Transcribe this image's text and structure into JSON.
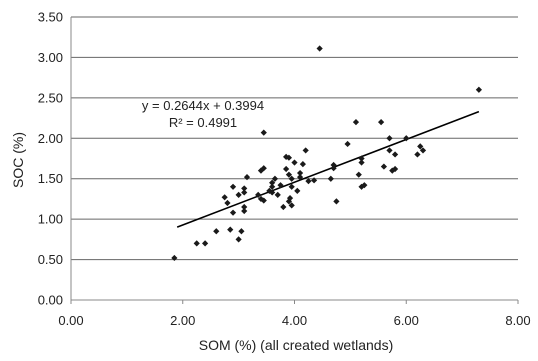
{
  "chart_data": {
    "type": "scatter",
    "title": "",
    "xlabel": "SOM (%) (all created wetlands)",
    "ylabel": "SOC (%)",
    "xlim": [
      0,
      8
    ],
    "ylim": [
      0,
      3.5
    ],
    "x_ticks": [
      "0.00",
      "2.00",
      "4.00",
      "6.00",
      "8.00"
    ],
    "y_ticks": [
      "0.00",
      "0.50",
      "1.00",
      "1.50",
      "2.00",
      "2.50",
      "3.00",
      "3.50"
    ],
    "grid": "horizontal",
    "legend": "none",
    "colors": {
      "points": "#1a1a1a",
      "trendline": "#000000",
      "grid": "#666666",
      "axis": "#888888"
    },
    "trendline": {
      "slope": 0.2644,
      "intercept": 0.3994,
      "x_range": [
        1.9,
        7.3
      ],
      "equation_label": "y = 0.2644x + 0.3994",
      "r2_label": "R² = 0.4991"
    },
    "points": [
      [
        1.85,
        0.52
      ],
      [
        2.25,
        0.7
      ],
      [
        2.4,
        0.7
      ],
      [
        2.6,
        0.85
      ],
      [
        2.75,
        1.27
      ],
      [
        2.8,
        1.2
      ],
      [
        2.85,
        0.87
      ],
      [
        2.9,
        1.08
      ],
      [
        2.9,
        1.4
      ],
      [
        3.0,
        0.75
      ],
      [
        3.05,
        0.85
      ],
      [
        3.0,
        1.3
      ],
      [
        3.1,
        1.15
      ],
      [
        3.1,
        1.1
      ],
      [
        3.1,
        1.38
      ],
      [
        3.1,
        1.33
      ],
      [
        3.15,
        1.52
      ],
      [
        3.35,
        1.3
      ],
      [
        3.4,
        1.6
      ],
      [
        3.4,
        1.25
      ],
      [
        3.45,
        1.63
      ],
      [
        3.45,
        1.23
      ],
      [
        3.45,
        2.07
      ],
      [
        3.55,
        1.35
      ],
      [
        3.6,
        1.4
      ],
      [
        3.6,
        1.33
      ],
      [
        3.6,
        1.45
      ],
      [
        3.65,
        1.5
      ],
      [
        3.7,
        1.3
      ],
      [
        3.75,
        1.42
      ],
      [
        3.8,
        1.15
      ],
      [
        3.85,
        1.77
      ],
      [
        3.85,
        1.62
      ],
      [
        3.9,
        1.76
      ],
      [
        3.9,
        1.55
      ],
      [
        3.9,
        1.22
      ],
      [
        3.92,
        1.26
      ],
      [
        3.95,
        1.17
      ],
      [
        3.95,
        1.4
      ],
      [
        3.95,
        1.5
      ],
      [
        4.0,
        1.7
      ],
      [
        4.05,
        1.35
      ],
      [
        4.1,
        1.52
      ],
      [
        4.1,
        1.57
      ],
      [
        4.15,
        1.68
      ],
      [
        4.2,
        1.85
      ],
      [
        4.25,
        1.47
      ],
      [
        4.35,
        1.48
      ],
      [
        4.45,
        3.11
      ],
      [
        4.65,
        1.5
      ],
      [
        4.7,
        1.67
      ],
      [
        4.7,
        1.63
      ],
      [
        4.75,
        1.22
      ],
      [
        4.95,
        1.93
      ],
      [
        5.1,
        2.2
      ],
      [
        5.15,
        1.55
      ],
      [
        5.2,
        1.75
      ],
      [
        5.2,
        1.7
      ],
      [
        5.2,
        1.4
      ],
      [
        5.25,
        1.42
      ],
      [
        5.55,
        2.2
      ],
      [
        5.6,
        1.65
      ],
      [
        5.7,
        1.85
      ],
      [
        5.7,
        2.0
      ],
      [
        5.75,
        1.6
      ],
      [
        5.8,
        1.8
      ],
      [
        5.8,
        1.62
      ],
      [
        6.0,
        2.0
      ],
      [
        6.2,
        1.8
      ],
      [
        6.25,
        1.9
      ],
      [
        6.3,
        1.85
      ],
      [
        7.3,
        2.6
      ]
    ]
  }
}
